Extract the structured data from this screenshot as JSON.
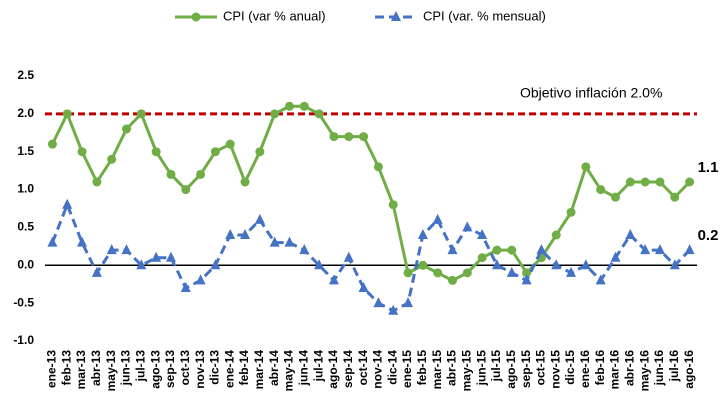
{
  "chart_data": {
    "type": "line",
    "categories": [
      "ene-13",
      "feb-13",
      "mar-13",
      "abr-13",
      "may-13",
      "jun-13",
      "jul-13",
      "ago-13",
      "sep-13",
      "oct-13",
      "nov-13",
      "dic-13",
      "ene-14",
      "feb-14",
      "mar-14",
      "abr-14",
      "may-14",
      "jun-14",
      "jul-14",
      "ago-14",
      "sep-14",
      "oct-14",
      "nov-14",
      "dic-14",
      "ene-15",
      "feb-15",
      "mar-15",
      "abr-15",
      "may-15",
      "jun-15",
      "jul-15",
      "ago-15",
      "sep-15",
      "oct-15",
      "nov-15",
      "dic-15",
      "ene-16",
      "feb-16",
      "mar-16",
      "abr-16",
      "may-16",
      "jun-16",
      "jul-16",
      "ago-16"
    ],
    "series": [
      {
        "name": "CPI (var % anual)",
        "color": "#70ad47",
        "dashed": false,
        "marker": "circle",
        "end_label": "1.1",
        "values": [
          1.6,
          2.0,
          1.5,
          1.1,
          1.4,
          1.8,
          2.0,
          1.5,
          1.2,
          1.0,
          1.2,
          1.5,
          1.6,
          1.1,
          1.5,
          2.0,
          2.1,
          2.1,
          2.0,
          1.7,
          1.7,
          1.7,
          1.3,
          0.8,
          -0.1,
          0.0,
          -0.1,
          -0.2,
          -0.1,
          0.1,
          0.2,
          0.2,
          -0.1,
          0.1,
          0.4,
          0.7,
          1.3,
          1.0,
          0.9,
          1.1,
          1.1,
          1.1,
          0.9,
          1.1
        ]
      },
      {
        "name": "CPI (var. % mensual)",
        "color": "#4472c4",
        "dashed": true,
        "marker": "triangle",
        "end_label": "0.2",
        "values": [
          0.3,
          0.8,
          0.3,
          -0.1,
          0.2,
          0.2,
          0.0,
          0.1,
          0.1,
          -0.3,
          -0.2,
          0.0,
          0.4,
          0.4,
          0.6,
          0.3,
          0.3,
          0.2,
          0.0,
          -0.2,
          0.1,
          -0.3,
          -0.5,
          -0.6,
          -0.5,
          0.4,
          0.6,
          0.2,
          0.5,
          0.4,
          0.0,
          -0.1,
          -0.2,
          0.2,
          0.0,
          -0.1,
          0.0,
          -0.2,
          0.1,
          0.4,
          0.2,
          0.2,
          0.0,
          0.2
        ]
      }
    ],
    "target_line": {
      "value": 2.0,
      "label": "Objetivo inflación 2.0%",
      "color": "#c00000"
    },
    "ylim": [
      -1.0,
      2.5
    ],
    "yticks": [
      2.5,
      {
        "value": 2.0,
        "label": "2.0"
      },
      1.5,
      {
        "value": 1.0,
        "label": "1.0"
      },
      0.5,
      {
        "value": 0.0,
        "label": "0.0"
      },
      -0.5,
      {
        "value": -1.0,
        "label": "-1.0"
      }
    ],
    "grid": false,
    "legend": "top"
  }
}
